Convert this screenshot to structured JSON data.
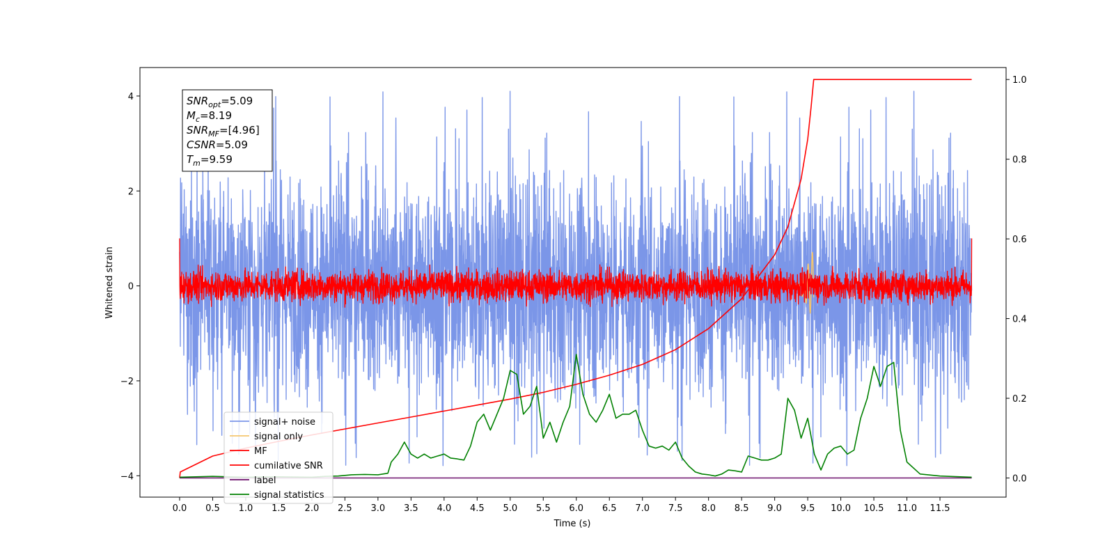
{
  "chart_data": {
    "type": "line",
    "xlabel": "Time (s)",
    "ylabel": "Whitened strain",
    "xlim": [
      -0.6,
      12.5
    ],
    "ylim": [
      -4.45,
      4.6
    ],
    "y2lim": [
      -0.048,
      1.03
    ],
    "x_ticks": [
      0.0,
      0.5,
      1.0,
      1.5,
      2.0,
      2.5,
      3.0,
      3.5,
      4.0,
      4.5,
      5.0,
      5.5,
      6.0,
      6.5,
      7.0,
      7.5,
      8.0,
      8.5,
      9.0,
      9.5,
      10.0,
      10.5,
      11.0,
      11.5
    ],
    "x_tick_labels": [
      "0.0",
      "0.5",
      "1.0",
      "1.5",
      "2.0",
      "2.5",
      "3.0",
      "3.5",
      "4.0",
      "4.5",
      "5.0",
      "5.5",
      "6.0",
      "6.5",
      "7.0",
      "7.5",
      "8.0",
      "8.5",
      "9.0",
      "9.5",
      "10.0",
      "10.5",
      "11.0",
      "11.5"
    ],
    "y_ticks": [
      -4,
      -2,
      0,
      2,
      4
    ],
    "y_tick_labels": [
      "−4",
      "−2",
      "0",
      "2",
      "4"
    ],
    "y2_ticks": [
      0.0,
      0.2,
      0.4,
      0.6,
      0.8,
      1.0
    ],
    "y2_tick_labels": [
      "0.0",
      "0.2",
      "0.4",
      "0.6",
      "0.8",
      "1.0"
    ],
    "annotation": {
      "lines": [
        {
          "name": "SNR",
          "sub": "opt",
          "value": "=5.09"
        },
        {
          "name": "M",
          "sub": "c",
          "value": "=8.19"
        },
        {
          "name": "SNR",
          "sub": "MF",
          "value": "=[4.96]"
        },
        {
          "name": "CSNR",
          "sub": "",
          "value": "=5.09"
        },
        {
          "name": "T",
          "sub": "m",
          "value": "=9.59"
        }
      ]
    },
    "legend": {
      "placement": "lower-left",
      "entries": [
        {
          "label": "signal+ noise",
          "color": "#7b96e8"
        },
        {
          "label": "signal only",
          "color": "#f5c66e"
        },
        {
          "label": "MF",
          "color": "#ff0000"
        },
        {
          "label": "cumilative SNR",
          "color": "#ff0000"
        },
        {
          "label": "label",
          "color": "#6a0d6a"
        },
        {
          "label": "signal statistics",
          "color": "#008000"
        }
      ]
    },
    "series": [
      {
        "name": "signal+ noise",
        "axis": "left",
        "color": "#7b96e8",
        "kind": "noise",
        "x_range": [
          0.0,
          11.98
        ],
        "center": 0.0,
        "band_amplitude": 2.0,
        "extreme_max": 4.12,
        "extreme_min": -3.8
      },
      {
        "name": "signal only",
        "axis": "left",
        "color": "#f5c66e",
        "kind": "chirp",
        "x_range": [
          9.2,
          9.59
        ],
        "peak_amplitude": 0.8
      },
      {
        "name": "MF",
        "axis": "left",
        "color": "#ff0000",
        "kind": "noise",
        "x_range": [
          0.0,
          11.98
        ],
        "center": 0.0,
        "band_amplitude": 0.3,
        "edge_values": [
          1.0,
          1.0
        ]
      },
      {
        "name": "cumilative SNR",
        "axis": "right",
        "color": "#ff0000",
        "x": [
          0.0,
          0.01,
          0.5,
          1.0,
          1.5,
          2.0,
          2.5,
          3.0,
          3.5,
          4.0,
          4.5,
          5.0,
          5.5,
          6.0,
          6.5,
          7.0,
          7.5,
          8.0,
          8.5,
          9.0,
          9.2,
          9.4,
          9.5,
          9.55,
          9.59,
          11.98
        ],
        "y": [
          0.0,
          0.015,
          0.055,
          0.075,
          0.092,
          0.108,
          0.123,
          0.138,
          0.153,
          0.168,
          0.183,
          0.198,
          0.215,
          0.235,
          0.258,
          0.285,
          0.322,
          0.375,
          0.45,
          0.56,
          0.63,
          0.75,
          0.85,
          0.93,
          1.0,
          1.0
        ]
      },
      {
        "name": "label",
        "axis": "right",
        "color": "#6a0d6a",
        "x": [
          0.0,
          11.98
        ],
        "y": [
          0.0,
          0.0
        ]
      },
      {
        "name": "signal statistics",
        "axis": "right",
        "color": "#008000",
        "x": [
          0.0,
          0.5,
          1.0,
          1.5,
          2.0,
          2.2,
          2.4,
          2.6,
          2.8,
          3.0,
          3.15,
          3.2,
          3.3,
          3.4,
          3.5,
          3.6,
          3.7,
          3.8,
          3.9,
          4.0,
          4.1,
          4.2,
          4.3,
          4.4,
          4.5,
          4.6,
          4.7,
          4.8,
          4.9,
          5.0,
          5.1,
          5.2,
          5.3,
          5.4,
          5.5,
          5.6,
          5.7,
          5.8,
          5.9,
          6.0,
          6.1,
          6.2,
          6.3,
          6.4,
          6.5,
          6.6,
          6.7,
          6.8,
          6.9,
          7.0,
          7.1,
          7.2,
          7.3,
          7.4,
          7.5,
          7.6,
          7.7,
          7.8,
          7.9,
          8.0,
          8.1,
          8.2,
          8.3,
          8.4,
          8.5,
          8.6,
          8.7,
          8.8,
          8.9,
          9.0,
          9.1,
          9.2,
          9.3,
          9.4,
          9.5,
          9.6,
          9.7,
          9.8,
          9.9,
          10.0,
          10.1,
          10.2,
          10.3,
          10.4,
          10.5,
          10.6,
          10.7,
          10.8,
          10.9,
          11.0,
          11.2,
          11.5,
          11.98
        ],
        "y": [
          0.002,
          0.004,
          0.002,
          0.003,
          0.002,
          0.004,
          0.005,
          0.008,
          0.009,
          0.008,
          0.012,
          0.04,
          0.06,
          0.09,
          0.06,
          0.05,
          0.06,
          0.05,
          0.055,
          0.06,
          0.05,
          0.048,
          0.045,
          0.08,
          0.14,
          0.16,
          0.12,
          0.16,
          0.2,
          0.27,
          0.26,
          0.16,
          0.18,
          0.23,
          0.1,
          0.14,
          0.09,
          0.14,
          0.18,
          0.31,
          0.21,
          0.16,
          0.14,
          0.17,
          0.21,
          0.15,
          0.16,
          0.16,
          0.17,
          0.12,
          0.08,
          0.075,
          0.08,
          0.07,
          0.09,
          0.05,
          0.03,
          0.015,
          0.01,
          0.008,
          0.005,
          0.01,
          0.02,
          0.018,
          0.015,
          0.055,
          0.05,
          0.045,
          0.045,
          0.05,
          0.06,
          0.2,
          0.17,
          0.1,
          0.15,
          0.06,
          0.02,
          0.06,
          0.075,
          0.08,
          0.06,
          0.07,
          0.15,
          0.2,
          0.28,
          0.23,
          0.28,
          0.29,
          0.12,
          0.04,
          0.01,
          0.005,
          0.002
        ]
      }
    ]
  }
}
